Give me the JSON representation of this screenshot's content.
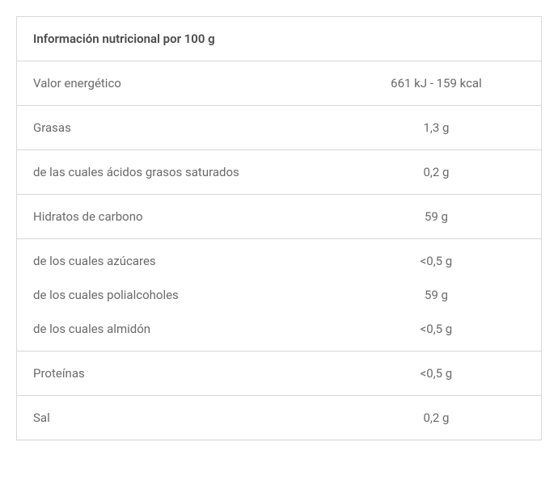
{
  "table": {
    "title": "Información nutricional por 100 g",
    "rows": [
      {
        "label": "Valor energético",
        "value": "661 kJ - 159 kcal",
        "group": "single"
      },
      {
        "label": "Grasas",
        "value": "1,3 g",
        "group": "single"
      },
      {
        "label": "de las cuales ácidos grasos saturados",
        "value": "0,2 g",
        "group": "single"
      },
      {
        "label": "Hidratos de carbono",
        "value": "59 g",
        "group": "single"
      },
      {
        "label": "de los cuales azúcares",
        "value": "<0,5 g",
        "group": "first"
      },
      {
        "label": "de los cuales polialcoholes",
        "value": "59 g",
        "group": "mid"
      },
      {
        "label": "de los cuales almidón",
        "value": "<0,5 g",
        "group": "last"
      },
      {
        "label": "Proteínas",
        "value": "<0,5 g",
        "group": "single"
      },
      {
        "label": "Sal",
        "value": "0,2 g",
        "group": "single"
      }
    ],
    "border_color": "#d8d8d8",
    "text_color": "#6a6a6a",
    "header_color": "#4a4a4a",
    "background_color": "#ffffff",
    "font_size_pt": 15,
    "label_col_width_pct": 60,
    "value_col_width_pct": 40
  }
}
